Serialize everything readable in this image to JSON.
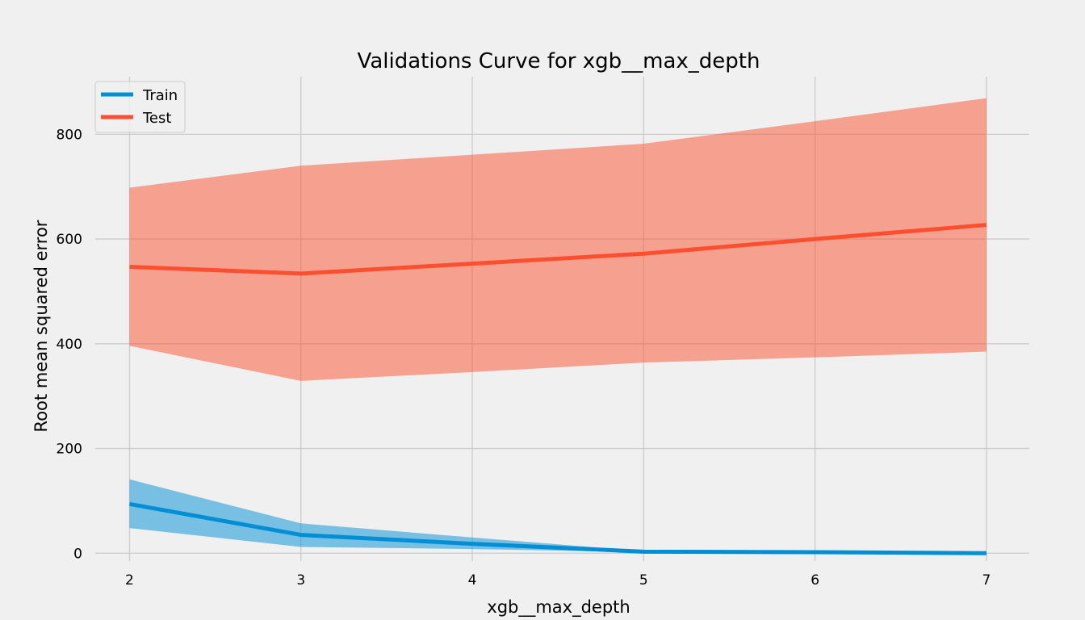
{
  "chart_data": {
    "type": "line",
    "title": "Validations Curve for xgb__max_depth",
    "xlabel": "xgb__max_depth",
    "ylabel": "Root mean squared error",
    "x": [
      2,
      3,
      4,
      5,
      6,
      7
    ],
    "xlim": [
      1.8,
      7.25
    ],
    "ylim": [
      -15,
      910
    ],
    "xticks": [
      "2",
      "3",
      "4",
      "5",
      "6",
      "7"
    ],
    "yticks": [
      "0",
      "200",
      "400",
      "600",
      "800"
    ],
    "ytick_values": [
      0,
      200,
      400,
      600,
      800
    ],
    "grid": true,
    "legend_position": "top-left",
    "series": [
      {
        "name": "Train",
        "color": "#008fd5",
        "values": [
          94,
          35,
          18,
          3,
          2,
          0
        ],
        "band_lower": [
          48,
          12,
          8,
          2,
          2,
          0
        ],
        "band_upper": [
          141,
          57,
          30,
          4,
          2,
          0
        ]
      },
      {
        "name": "Test",
        "color": "#fc4f30",
        "values": [
          547,
          534,
          553,
          572,
          600,
          627
        ],
        "band_lower": [
          396,
          329,
          346,
          364,
          374,
          385
        ],
        "band_upper": [
          698,
          740,
          761,
          782,
          825,
          869
        ]
      }
    ]
  }
}
